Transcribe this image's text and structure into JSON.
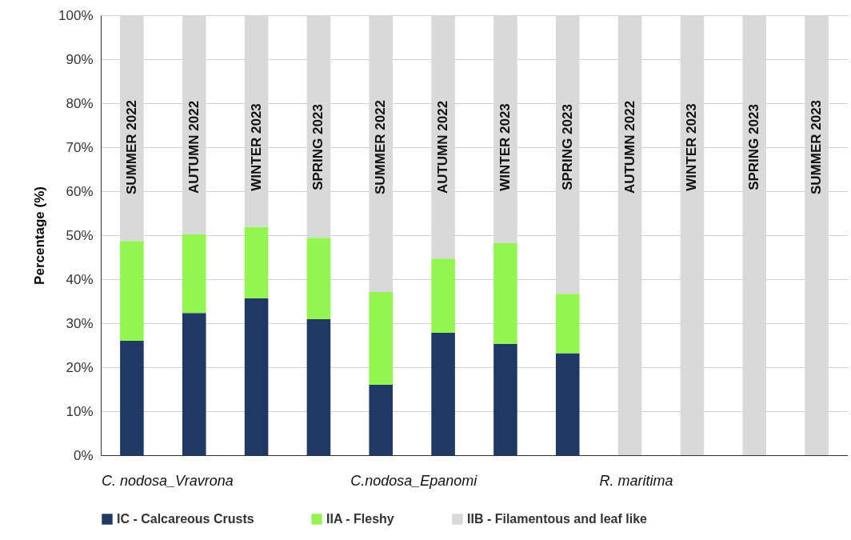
{
  "chart_data": {
    "type": "bar",
    "stacked": true,
    "categories": [
      "SUMMER 2022",
      "AUTUMN 2022",
      "WINTER 2023",
      "SPRING 2023",
      "SUMMER 2022",
      "AUTUMN 2022",
      "WINTER 2023",
      "SPRING 2023",
      "AUTUMN 2022",
      "WINTER 2023",
      "SPRING 2023",
      "SUMMER 2023"
    ],
    "series": [
      {
        "name": "IC - Calcareous Crusts",
        "color": "#1f3864",
        "values": [
          26,
          32.3,
          35.7,
          30.9,
          16,
          27.8,
          25.3,
          23.2,
          0,
          0,
          0,
          0
        ]
      },
      {
        "name": "IIA - Fleshy",
        "color": "#92f550",
        "values": [
          22.7,
          17.9,
          16.2,
          18.5,
          21.1,
          16.9,
          22.9,
          13.5,
          0,
          0,
          0,
          0
        ]
      },
      {
        "name": "IIB - Filamentous and leaf like",
        "color": "#d9d9d9",
        "values": [
          51.3,
          49.8,
          48.1,
          50.6,
          62.9,
          55.3,
          51.8,
          63.3,
          100,
          100,
          100,
          100
        ]
      }
    ],
    "ylabel": "Percentage (%)",
    "ylim": [
      0,
      100
    ],
    "yticks": [
      {
        "value": 0,
        "label": "0%"
      },
      {
        "value": 10,
        "label": "10%"
      },
      {
        "value": 20,
        "label": "20%"
      },
      {
        "value": 30,
        "label": "30%"
      },
      {
        "value": 40,
        "label": "40%"
      },
      {
        "value": 50,
        "label": "50%"
      },
      {
        "value": 60,
        "label": "60%"
      },
      {
        "value": 70,
        "label": "70%"
      },
      {
        "value": 80,
        "label": "80%"
      },
      {
        "value": 90,
        "label": "90%"
      },
      {
        "value": 100,
        "label": "100%"
      }
    ],
    "annotations": [
      "C. nodosa_Vravrona",
      "C.nodosa_Epanomi",
      "R. maritima"
    ],
    "grid": "y",
    "legend": "bottom"
  }
}
